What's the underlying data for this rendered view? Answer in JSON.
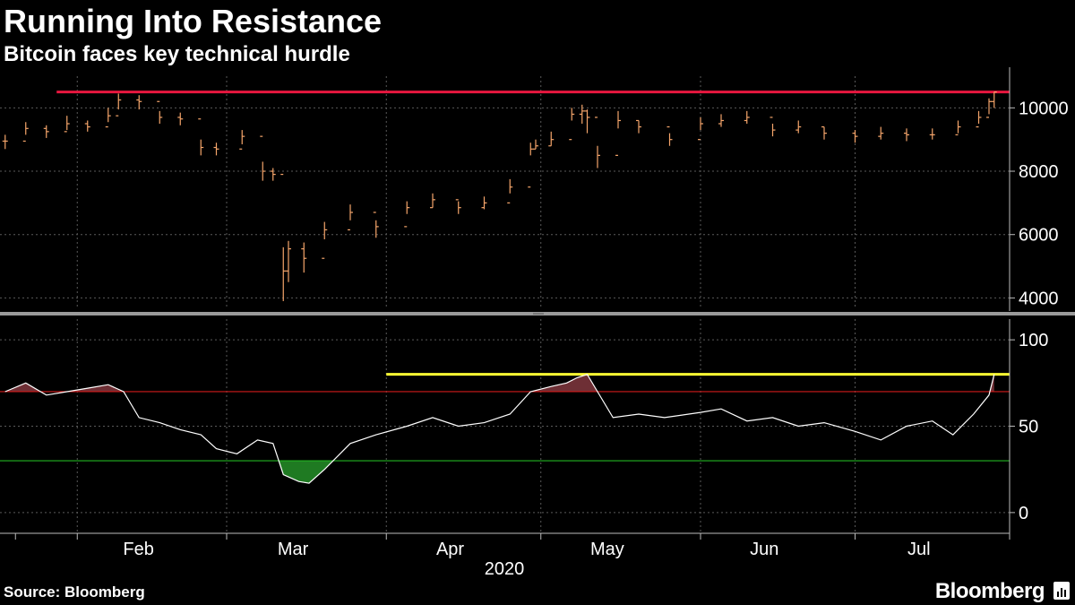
{
  "header": {
    "title": "Running Into Resistance",
    "subtitle": "Bitcoin faces key technical hurdle"
  },
  "footer": {
    "source": "Source: Bloomberg",
    "brand": "Bloomberg"
  },
  "colors": {
    "background": "#000000",
    "price_bars": "#f5a56b",
    "resistance": "#e8173f",
    "rsi_line": "#ffffff",
    "overbought_line": "#d01a1a",
    "oversold_line": "#22b522",
    "rsi_peak_line": "#ffff33",
    "overbought_fill": "#6e2f35",
    "oversold_fill": "#1f7a22"
  },
  "chart_data": [
    {
      "type": "ohlc",
      "x": [
        "2020-01-18",
        "2020-01-22",
        "2020-01-26",
        "2020-01-30",
        "2020-02-03",
        "2020-02-07",
        "2020-02-09",
        "2020-02-13",
        "2020-02-17",
        "2020-02-21",
        "2020-02-25",
        "2020-02-28",
        "2020-03-04",
        "2020-03-08",
        "2020-03-10",
        "2020-03-12",
        "2020-03-13",
        "2020-03-16",
        "2020-03-20",
        "2020-03-25",
        "2020-03-30",
        "2020-04-05",
        "2020-04-10",
        "2020-04-15",
        "2020-04-20",
        "2020-04-25",
        "2020-04-29",
        "2020-04-30",
        "2020-05-03",
        "2020-05-07",
        "2020-05-09",
        "2020-05-10",
        "2020-05-12",
        "2020-05-16",
        "2020-05-20",
        "2020-05-26",
        "2020-06-01",
        "2020-06-05",
        "2020-06-10",
        "2020-06-15",
        "2020-06-20",
        "2020-06-25",
        "2020-07-01",
        "2020-07-06",
        "2020-07-11",
        "2020-07-16",
        "2020-07-21",
        "2020-07-25",
        "2020-07-27",
        "2020-07-28"
      ],
      "close": [
        8950,
        9350,
        9250,
        9500,
        9400,
        9750,
        10250,
        10200,
        9700,
        9650,
        8750,
        8700,
        9100,
        8000,
        7900,
        4850,
        5550,
        5250,
        6150,
        6700,
        6250,
        6850,
        7100,
        6850,
        7000,
        7500,
        8700,
        8800,
        9000,
        9800,
        9900,
        9700,
        8500,
        9600,
        9400,
        9000,
        9500,
        9600,
        9700,
        9300,
        9400,
        9200,
        9100,
        9200,
        9150,
        9150,
        9400,
        9700,
        10200,
        10500
      ],
      "low": [
        8700,
        9150,
        9050,
        9300,
        9250,
        9550,
        9950,
        9950,
        9500,
        9450,
        8500,
        8500,
        8850,
        7700,
        7700,
        3900,
        4500,
        4800,
        5850,
        6450,
        5900,
        6650,
        6850,
        6650,
        6800,
        7300,
        8500,
        8700,
        8800,
        9600,
        9500,
        9200,
        8100,
        9350,
        9200,
        8800,
        9300,
        9400,
        9500,
        9100,
        9200,
        9000,
        8900,
        9000,
        8950,
        9000,
        9200,
        9500,
        9800,
        10000
      ],
      "high": [
        9150,
        9550,
        9450,
        9750,
        9600,
        10000,
        10450,
        10400,
        9900,
        9850,
        9000,
        8900,
        9300,
        8300,
        8100,
        5600,
        5800,
        5750,
        6400,
        6950,
        6450,
        7050,
        7300,
        7050,
        7200,
        7750,
        8900,
        9000,
        9250,
        10000,
        10100,
        9950,
        8800,
        9900,
        9600,
        9200,
        9700,
        9800,
        9900,
        9500,
        9600,
        9400,
        9300,
        9400,
        9350,
        9350,
        9600,
        9900,
        10300,
        10500
      ],
      "resistance": 10500,
      "ylim": [
        3700,
        11000
      ],
      "yticks": [
        4000,
        6000,
        8000,
        10000
      ]
    },
    {
      "type": "line",
      "x": [
        "2020-01-18",
        "2020-01-22",
        "2020-01-26",
        "2020-01-30",
        "2020-02-03",
        "2020-02-07",
        "2020-02-10",
        "2020-02-13",
        "2020-02-17",
        "2020-02-21",
        "2020-02-25",
        "2020-02-28",
        "2020-03-03",
        "2020-03-07",
        "2020-03-10",
        "2020-03-12",
        "2020-03-15",
        "2020-03-17",
        "2020-03-20",
        "2020-03-25",
        "2020-03-30",
        "2020-04-05",
        "2020-04-10",
        "2020-04-15",
        "2020-04-20",
        "2020-04-25",
        "2020-04-29",
        "2020-05-03",
        "2020-05-06",
        "2020-05-08",
        "2020-05-10",
        "2020-05-12",
        "2020-05-15",
        "2020-05-20",
        "2020-05-25",
        "2020-06-01",
        "2020-06-05",
        "2020-06-10",
        "2020-06-15",
        "2020-06-20",
        "2020-06-25",
        "2020-07-01",
        "2020-07-06",
        "2020-07-11",
        "2020-07-16",
        "2020-07-20",
        "2020-07-24",
        "2020-07-27",
        "2020-07-28"
      ],
      "values": [
        70,
        75,
        68,
        70,
        72,
        74,
        70,
        55,
        52,
        48,
        45,
        37,
        34,
        42,
        40,
        22,
        18,
        17,
        25,
        40,
        45,
        50,
        55,
        50,
        52,
        57,
        70,
        73,
        75,
        78,
        80,
        70,
        55,
        57,
        55,
        58,
        60,
        53,
        55,
        50,
        52,
        47,
        42,
        50,
        53,
        45,
        57,
        68,
        80
      ],
      "overbought": 70,
      "oversold": 30,
      "peak_level": 80,
      "peak_line_start": "2020-04-01",
      "ylim": [
        -12,
        112
      ],
      "yticks": [
        0,
        50,
        100
      ]
    }
  ],
  "x_axis": {
    "months": [
      "Feb",
      "Mar",
      "Apr",
      "May",
      "Jun",
      "Jul"
    ],
    "year": "2020"
  }
}
